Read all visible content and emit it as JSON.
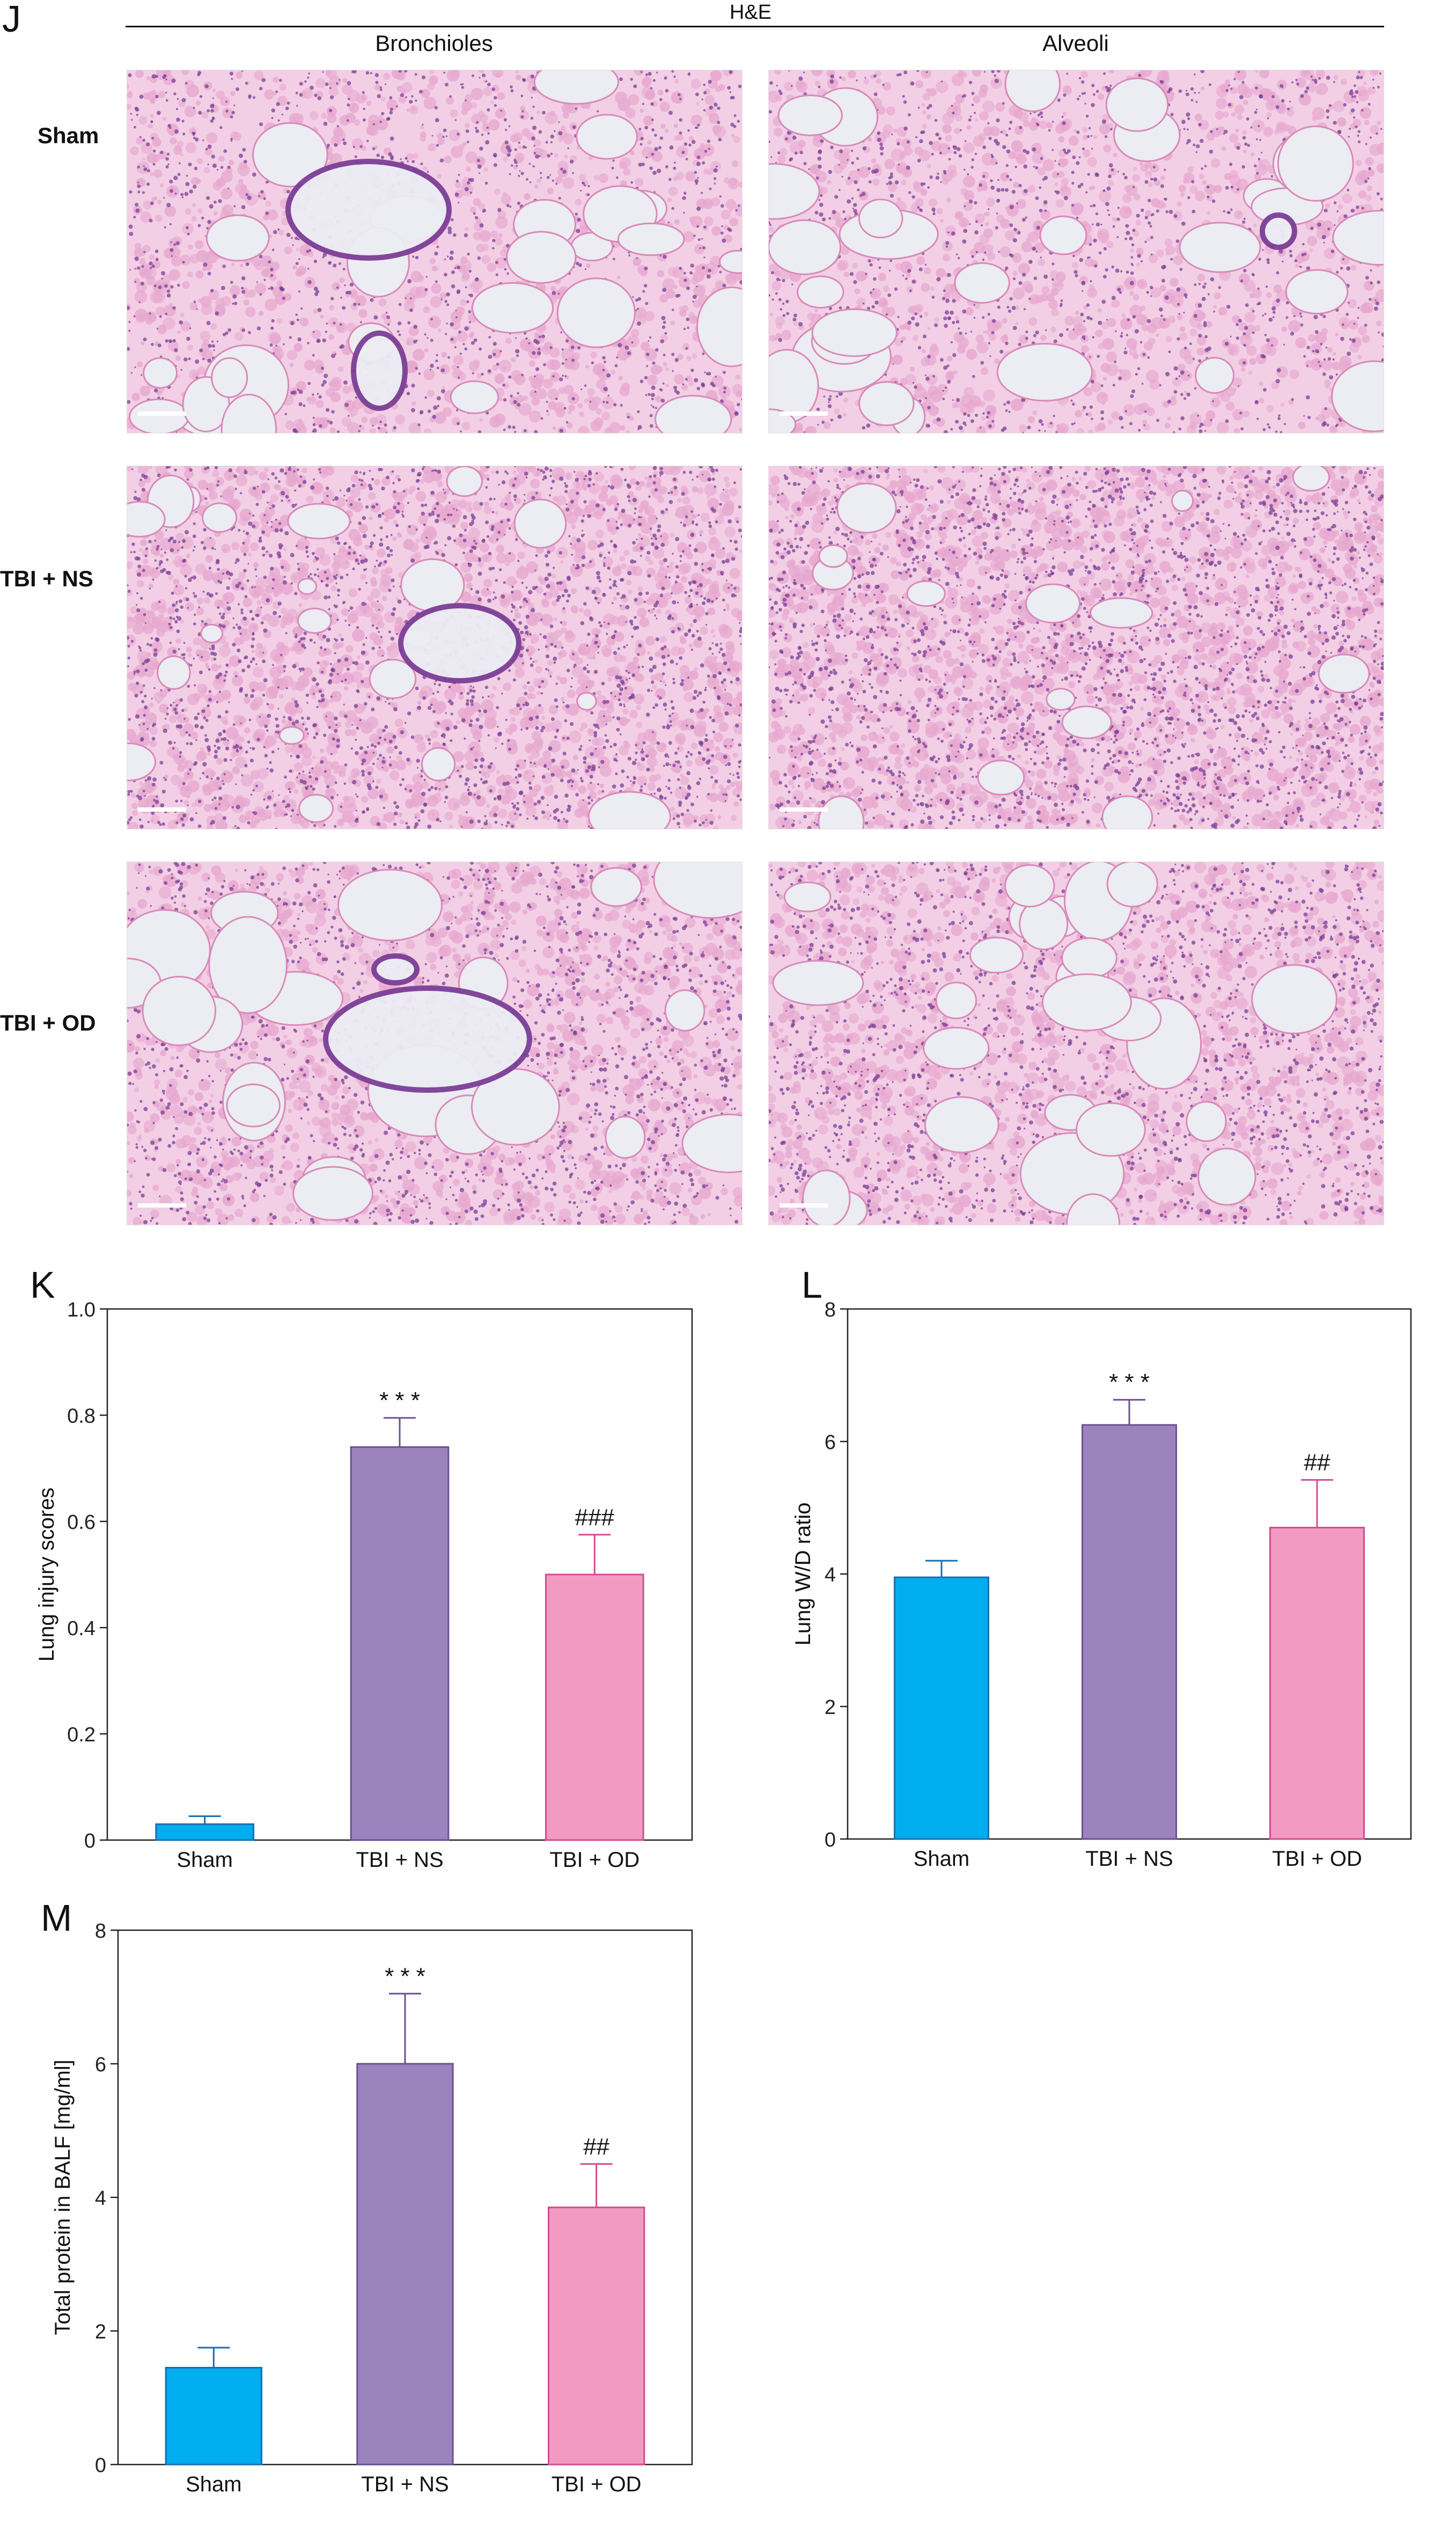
{
  "panel_j": {
    "letter": "J",
    "title": "H&E",
    "columns": [
      "Bronchioles",
      "Alveoli"
    ],
    "rows": [
      "Sham",
      "TBI + NS",
      "TBI + OD"
    ]
  },
  "colors": {
    "sham": "#00adef",
    "tbi_ns": "#9b84bd",
    "tbi_od": "#f29ac1",
    "sham_edge": "#1a6fb0",
    "tbi_ns_edge": "#6b4f93",
    "tbi_od_edge": "#d24c93",
    "tissue_pink": "#e7a8cf",
    "tissue_purple": "#7b3f96",
    "background_slide": "#ececf3"
  },
  "chart_data": [
    {
      "panel": "K",
      "type": "bar",
      "categories": [
        "Sham",
        "TBI + NS",
        "TBI + OD"
      ],
      "values": [
        0.03,
        0.74,
        0.5
      ],
      "errors": [
        0.015,
        0.055,
        0.075
      ],
      "annotations": [
        "",
        "* * *",
        "###"
      ],
      "xlabel": "",
      "ylabel": "Lung injury scores",
      "ylim": [
        0,
        1.0
      ],
      "yticks": [
        "0",
        "0.2",
        "0.4",
        "0.6",
        "0.8",
        "1.0"
      ],
      "ytick_values": [
        0,
        0.2,
        0.4,
        0.6,
        0.8,
        1.0
      ]
    },
    {
      "panel": "L",
      "type": "bar",
      "categories": [
        "Sham",
        "TBI + NS",
        "TBI + OD"
      ],
      "values": [
        3.95,
        6.25,
        4.7
      ],
      "errors": [
        0.25,
        0.38,
        0.72
      ],
      "annotations": [
        "",
        "* * *",
        "##"
      ],
      "xlabel": "",
      "ylabel": "Lung W/D ratio",
      "ylim": [
        0,
        8
      ],
      "yticks": [
        "0",
        "2",
        "4",
        "6",
        "8"
      ],
      "ytick_values": [
        0,
        2,
        4,
        6,
        8
      ]
    },
    {
      "panel": "M",
      "type": "bar",
      "categories": [
        "Sham",
        "TBI + NS",
        "TBI + OD"
      ],
      "values": [
        1.45,
        6.0,
        3.85
      ],
      "errors": [
        0.3,
        1.05,
        0.65
      ],
      "annotations": [
        "",
        "* * *",
        "##"
      ],
      "xlabel": "",
      "ylabel": "Total protein in BALF [mg/ml]",
      "ylim": [
        0,
        8
      ],
      "yticks": [
        "0",
        "2",
        "4",
        "6",
        "8"
      ],
      "ytick_values": [
        0,
        2,
        4,
        6,
        8
      ]
    }
  ]
}
